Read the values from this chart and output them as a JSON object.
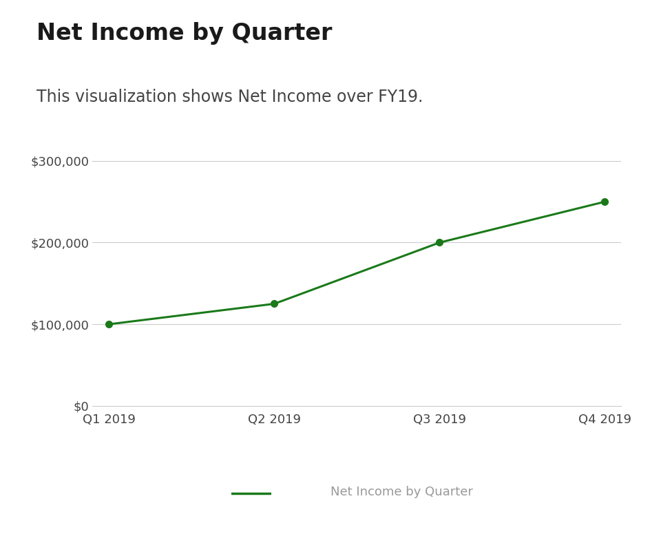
{
  "title": "Net Income by Quarter",
  "subtitle": "This visualization shows Net Income over FY19.",
  "categories": [
    "Q1 2019",
    "Q2 2019",
    "Q3 2019",
    "Q4 2019"
  ],
  "values": [
    100000,
    125000,
    200000,
    250000
  ],
  "line_color": "#1a7a1a",
  "marker_color": "#1a7a1a",
  "background_color": "#ffffff",
  "grid_color": "#cccccc",
  "tick_label_color": "#444444",
  "title_color": "#1a1a1a",
  "subtitle_color": "#444444",
  "legend_label": "Net Income by Quarter",
  "legend_line_color": "#1a7a1a",
  "legend_text_color": "#999999",
  "ylim": [
    0,
    320000
  ],
  "yticks": [
    0,
    100000,
    200000,
    300000
  ],
  "title_fontsize": 24,
  "subtitle_fontsize": 17,
  "tick_fontsize": 13,
  "legend_fontsize": 13
}
